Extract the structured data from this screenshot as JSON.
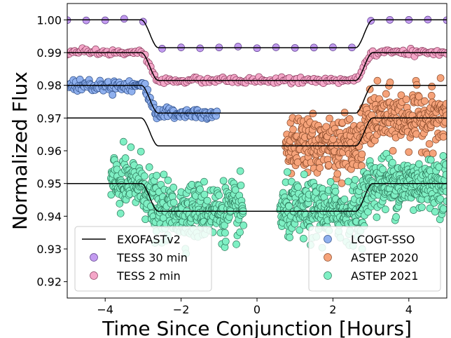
{
  "chart_data": {
    "type": "scatter",
    "xlabel": "Time Since Conjunction [Hours]",
    "ylabel": "Normalized Flux",
    "xlim": [
      -5,
      5
    ],
    "ylim": [
      0.915,
      1.005
    ],
    "x_ticks": [
      -4,
      -2,
      0,
      2,
      4
    ],
    "x_tick_labels": [
      "−4",
      "−2",
      "0",
      "2",
      "4"
    ],
    "y_ticks": [
      0.92,
      0.93,
      0.94,
      0.95,
      0.96,
      0.97,
      0.98,
      0.99,
      1.0
    ],
    "y_tick_labels": [
      "0.92",
      "0.93",
      "0.94",
      "0.95",
      "0.96",
      "0.97",
      "0.98",
      "0.99",
      "1.00"
    ],
    "grid": false,
    "transit_model": {
      "name": "EXOFASTv2",
      "color": "#000000",
      "depth": 0.0085,
      "t14_hours": 6.1,
      "t23_hours": 5.2,
      "curves": [
        {
          "baseline": 1.0
        },
        {
          "baseline": 0.99
        },
        {
          "baseline": 0.98
        },
        {
          "baseline": 0.97
        },
        {
          "baseline": 0.95
        }
      ]
    },
    "series": [
      {
        "name": "TESS 30 min",
        "color": "#c39bf0",
        "edge": "#5a3d8a",
        "baseline": 1.0,
        "x_range": [
          -5,
          5
        ],
        "step_hours": 0.5,
        "scatter": 0.0002
      },
      {
        "name": "TESS 2 min",
        "color": "#f4a6c8",
        "edge": "#8a3d5e",
        "baseline": 0.99,
        "x_range": [
          -5,
          5
        ],
        "step_hours": 0.05,
        "scatter": 0.00045
      },
      {
        "name": "LCOGT-SSO",
        "color": "#8fb0ee",
        "edge": "#30508a",
        "baseline": 0.98,
        "x_range": [
          -4.95,
          -1.05
        ],
        "step_hours": 0.022,
        "scatter": 0.0009
      },
      {
        "name": "ASTEP 2020",
        "color": "#f6a37a",
        "edge": "#8a4a2a",
        "baseline": 0.97,
        "x_range": [
          0.75,
          5
        ],
        "step_hours": 0.0095,
        "scatter": 0.0042
      },
      {
        "name": "ASTEP 2021",
        "color": "#7ff0c4",
        "edge": "#2e7a5c",
        "baseline": 0.95,
        "x_range": [
          -3.85,
          5
        ],
        "step_hours": 0.0085,
        "scatter": 0.0043,
        "gap": [
          -0.35,
          0.6
        ]
      }
    ],
    "legends": [
      {
        "placement": "lower-left",
        "entries": [
          "EXOFASTv2",
          "TESS 30 min",
          "TESS 2 min"
        ]
      },
      {
        "placement": "lower-right",
        "entries": [
          "LCOGT-SSO",
          "ASTEP 2020",
          "ASTEP 2021"
        ]
      }
    ]
  }
}
